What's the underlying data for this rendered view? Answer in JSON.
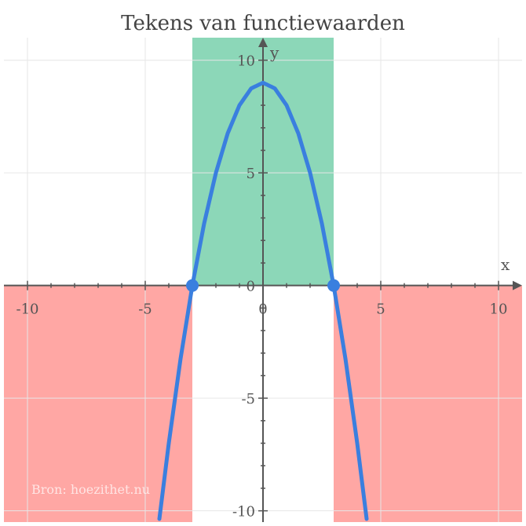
{
  "chart_data": {
    "type": "line",
    "title": "Tekens van functiewaarden",
    "xlabel": "x",
    "ylabel": "y",
    "xlim": [
      -11,
      11
    ],
    "ylim": [
      -10.5,
      11
    ],
    "grid": true,
    "x_ticks": [
      -10,
      -5,
      0,
      5,
      10
    ],
    "y_ticks": [
      -10,
      -5,
      0,
      5,
      10
    ],
    "function": "y = -x^2 + 9",
    "series": [
      {
        "x": [
          -4.4,
          -4,
          -3.5,
          -3,
          -2.5,
          -2,
          -1.5,
          -1,
          -0.5,
          0,
          0.5,
          1,
          1.5,
          2,
          2.5,
          3,
          3.5,
          4,
          4.4
        ],
        "y": [
          -10.36,
          -7,
          -3.25,
          0,
          2.75,
          5,
          6.75,
          8,
          8.75,
          9,
          8.75,
          8,
          6.75,
          5,
          2.75,
          0,
          -3.25,
          -7,
          -10.36
        ],
        "color": "#3a7fdf"
      }
    ],
    "zeros": [
      {
        "x": -3,
        "y": 0
      },
      {
        "x": 3,
        "y": 0
      }
    ],
    "regions": [
      {
        "sign": "negative",
        "x_from": -11,
        "x_to": -3,
        "color": "#ff8a85"
      },
      {
        "sign": "positive",
        "x_from": -3,
        "x_to": 3,
        "color": "#66c9a0"
      },
      {
        "sign": "negative",
        "x_from": 3,
        "x_to": 11,
        "color": "#ff8a85"
      }
    ]
  },
  "watermark": "Bron: hoezithet.nu",
  "colors": {
    "axis": "#555555",
    "grid": "#e6e6e6",
    "curve": "#3a7fdf",
    "negative_region": "#ff8a85",
    "positive_region": "#66c9a0"
  }
}
